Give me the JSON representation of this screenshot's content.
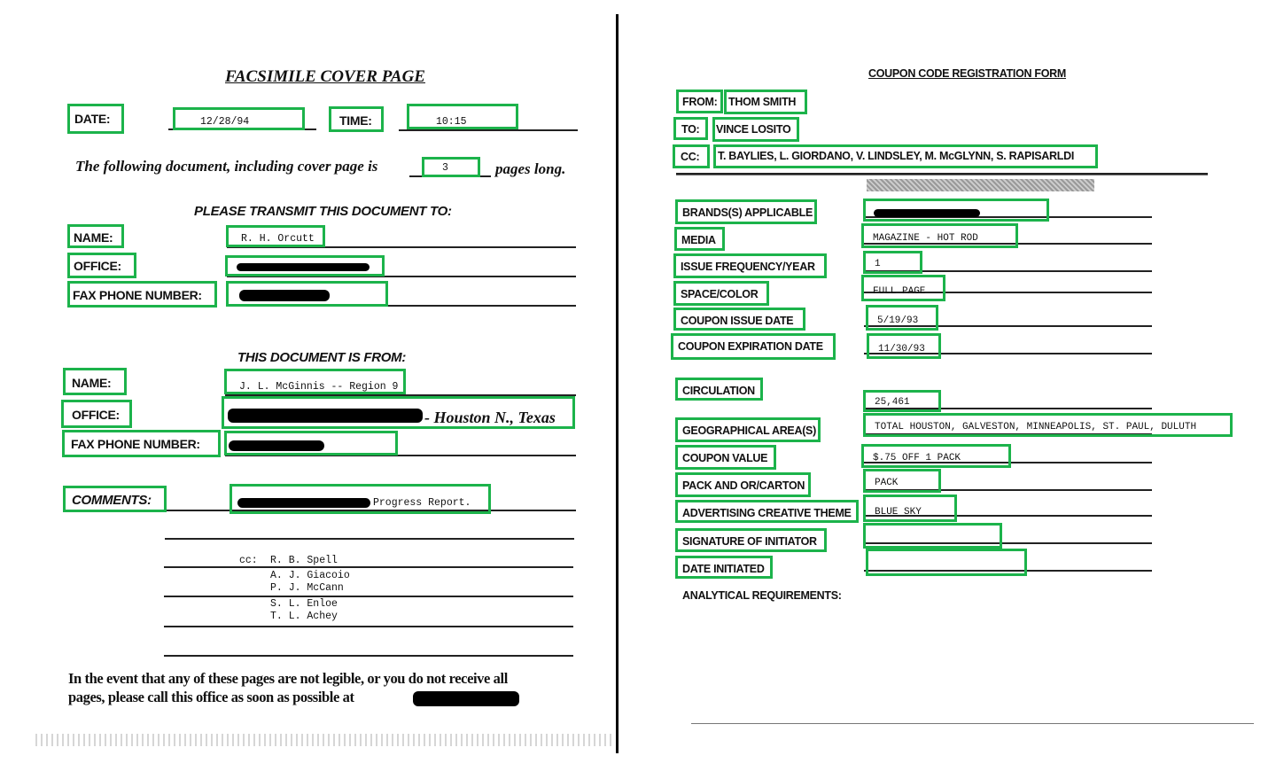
{
  "left_page": {
    "title": "FACSIMILE COVER PAGE",
    "date_label": "DATE:",
    "date_value": "12/28/94",
    "time_label": "TIME:",
    "time_value": "10:15",
    "pages_sentence_start": "The following document, including cover page is",
    "pages_value": "3",
    "pages_sentence_end": "pages long.",
    "transmit_heading": "PLEASE TRANSMIT THIS DOCUMENT TO:",
    "to": {
      "name_label": "NAME:",
      "name_value": "R. H. Orcutt",
      "office_label": "OFFICE:",
      "fax_label": "FAX PHONE NUMBER:"
    },
    "from_heading": "THIS DOCUMENT IS FROM:",
    "from": {
      "name_label": "NAME:",
      "name_value": "J. L. McGinnis -- Region 9",
      "office_label": "OFFICE:",
      "office_value_suffix": "- Houston N., Texas",
      "fax_label": "FAX PHONE NUMBER:"
    },
    "comments_label": "COMMENTS:",
    "comments_value_suffix": "Progress Report.",
    "cc_label": "cc:",
    "cc_names": [
      "R. B. Spell",
      "A. J. Giacoio",
      "P. J. McCann",
      "S. L. Enloe",
      "T. L. Achey"
    ],
    "footer_line1": "In the event that any of these pages are not legible, or you do not receive all",
    "footer_line2": "pages, please call this office as soon as possible at"
  },
  "right_page": {
    "title": "COUPON CODE REGISTRATION FORM",
    "from_label": "FROM:",
    "from_value": "THOM SMITH",
    "to_label": "TO:",
    "to_value": "VINCE LOSITO",
    "cc_label": "CC:",
    "cc_value": "T. BAYLIES, L. GIORDANO, V. LINDSLEY, M. McGLYNN, S. RAPISARLDI",
    "fields": [
      {
        "label": "BRANDS(S) APPLICABLE",
        "value": ""
      },
      {
        "label": "MEDIA",
        "value": "MAGAZINE - HOT ROD"
      },
      {
        "label": "ISSUE FREQUENCY/YEAR",
        "value": "1"
      },
      {
        "label": "SPACE/COLOR",
        "value": "FULL PAGE"
      },
      {
        "label": "COUPON ISSUE DATE",
        "value": "5/19/93"
      },
      {
        "label": "COUPON EXPIRATION DATE",
        "value": "11/30/93"
      },
      {
        "label": "CIRCULATION",
        "value": "25,461"
      },
      {
        "label": "GEOGRAPHICAL AREA(S)",
        "value": "TOTAL HOUSTON, GALVESTON, MINNEAPOLIS, ST. PAUL, DULUTH"
      },
      {
        "label": "COUPON VALUE",
        "value": "$.75 OFF 1 PACK"
      },
      {
        "label": "PACK AND OR/CARTON",
        "value": "PACK"
      },
      {
        "label": "ADVERTISING CREATIVE THEME",
        "value": "BLUE SKY"
      },
      {
        "label": "SIGNATURE OF INITIATOR",
        "value": ""
      },
      {
        "label": "DATE INITIATED",
        "value": ""
      }
    ],
    "analytical_label": "ANALYTICAL REQUIREMENTS:"
  },
  "colors": {
    "annotation_box": "#1cb34b",
    "ink": "#111111",
    "redaction": "#000000"
  }
}
